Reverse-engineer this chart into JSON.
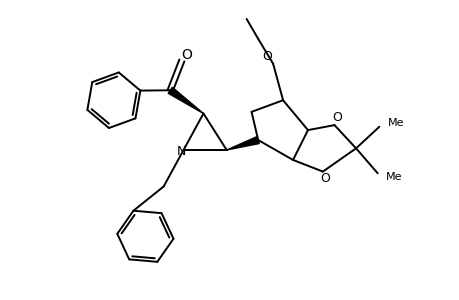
{
  "background": "#ffffff",
  "line_color": "#000000",
  "lw": 1.4,
  "figsize": [
    4.6,
    3.0
  ],
  "dpi": 100,
  "xlim": [
    0,
    10
  ],
  "ylim": [
    -1,
    8
  ]
}
